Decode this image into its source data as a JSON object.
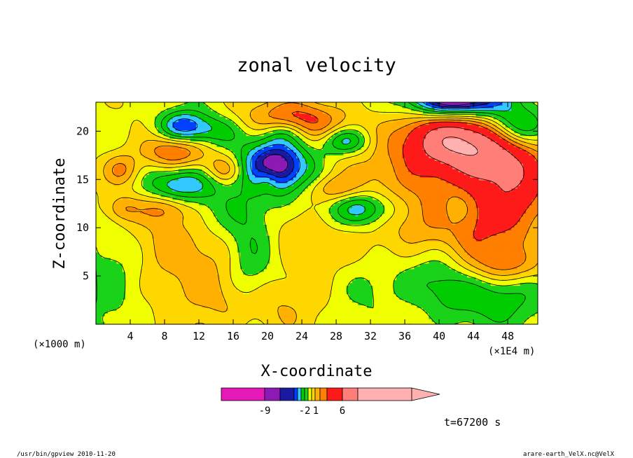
{
  "chart_data": {
    "type": "heatmap",
    "title": "zonal velocity",
    "xlabel": "X-coordinate",
    "ylabel": "Z-coordinate",
    "x_unit": "(×1E4 m)",
    "y_unit": "(×1000 m)",
    "xlim": [
      0,
      51.5
    ],
    "ylim": [
      0,
      23
    ],
    "x_ticks": [
      {
        "value": 4,
        "label": "4"
      },
      {
        "value": 8,
        "label": "8"
      },
      {
        "value": 12,
        "label": "12"
      },
      {
        "value": 16,
        "label": "16"
      },
      {
        "value": 20,
        "label": "20"
      },
      {
        "value": 24,
        "label": "24"
      },
      {
        "value": 28,
        "label": "28"
      },
      {
        "value": 32,
        "label": "32"
      },
      {
        "value": 36,
        "label": "36"
      },
      {
        "value": 40,
        "label": "40"
      },
      {
        "value": 44,
        "label": "44"
      },
      {
        "value": 48,
        "label": "48"
      }
    ],
    "y_ticks": [
      {
        "value": 5,
        "label": "5"
      },
      {
        "value": 10,
        "label": "10"
      },
      {
        "value": 15,
        "label": "15"
      },
      {
        "value": 20,
        "label": "20"
      }
    ],
    "grid": false,
    "colorbar": {
      "colors": [
        "#e519b8",
        "#8c1ab3",
        "#1a1aa0",
        "#0040ff",
        "#33c8ff",
        "#00cc00",
        "#19d219",
        "#f0ff00",
        "#ffd700",
        "#ffb000",
        "#ff7f00",
        "#ff1a1a",
        "#ff7f78",
        "#ffb0b0"
      ],
      "tick_labels": [
        "-9",
        "-2",
        "1",
        "6"
      ]
    },
    "fields": [
      {
        "x": 25,
        "y": 11,
        "sx": 30,
        "sy": 12,
        "v": 1.5
      },
      {
        "x": 8,
        "y": 7,
        "sx": 6,
        "sy": 4,
        "v": 1.2
      },
      {
        "x": 38,
        "y": 11,
        "sx": 5,
        "sy": 4,
        "v": 1.4
      },
      {
        "x": 18,
        "y": 2,
        "sx": 6,
        "sy": 2,
        "v": 1.2
      },
      {
        "x": 2,
        "y": 5,
        "sx": 3,
        "sy": 6,
        "v": -1.8
      },
      {
        "x": 18,
        "y": 7,
        "sx": 2,
        "sy": 5,
        "v": -2.2
      },
      {
        "x": 15,
        "y": 12,
        "sx": 3,
        "sy": 2,
        "v": -1.6
      },
      {
        "x": 32,
        "y": 4,
        "sx": 3,
        "sy": 2.5,
        "v": -1.8
      },
      {
        "x": 40,
        "y": 5,
        "sx": 3,
        "sy": 3,
        "v": -2.5
      },
      {
        "x": 21,
        "y": 16,
        "sx": 2,
        "sy": 3,
        "v": -2.0
      },
      {
        "x": 45,
        "y": 11,
        "sx": 4,
        "sy": 5,
        "v": 2.3
      },
      {
        "x": 49,
        "y": 15,
        "sx": 3,
        "sy": 4,
        "v": 3.2
      },
      {
        "x": 42,
        "y": 19,
        "sx": 5,
        "sy": 2.5,
        "v": 6.5
      },
      {
        "x": 23,
        "y": 21,
        "sx": 4,
        "sy": 1.5,
        "v": 4.0
      },
      {
        "x": 9,
        "y": 18,
        "sx": 2.5,
        "sy": 1.2,
        "v": 3.2
      },
      {
        "x": 3,
        "y": 16,
        "sx": 1.5,
        "sy": 1.2,
        "v": 2.6
      },
      {
        "x": 15,
        "y": 16,
        "sx": 1.5,
        "sy": 1,
        "v": 2.3
      },
      {
        "x": 28,
        "y": 14,
        "sx": 2,
        "sy": 1,
        "v": 2.2
      },
      {
        "x": 3,
        "y": 12,
        "sx": 1.5,
        "sy": 1,
        "v": 2.0
      },
      {
        "x": 8,
        "y": 12,
        "sx": 2,
        "sy": 1,
        "v": 2.0
      },
      {
        "x": 20,
        "y": 15,
        "sx": 1,
        "sy": 1,
        "v": 2.0
      },
      {
        "x": 21,
        "y": 16.5,
        "sx": 3.2,
        "sy": 1.8,
        "v": -5.3
      },
      {
        "x": 10,
        "y": 14.5,
        "sx": 3,
        "sy": 1.3,
        "v": -4.0
      },
      {
        "x": 31,
        "y": 12,
        "sx": 3,
        "sy": 1.3,
        "v": -4.0
      },
      {
        "x": 10,
        "y": 20.5,
        "sx": 2,
        "sy": 1.2,
        "v": -4.5
      },
      {
        "x": 29,
        "y": 19,
        "sx": 2,
        "sy": 1,
        "v": -4.0
      },
      {
        "x": 49,
        "y": 20.5,
        "sx": 2.5,
        "sy": 1.5,
        "v": -5.0
      },
      {
        "x": 14,
        "y": 20,
        "sx": 2.5,
        "sy": 1.2,
        "v": -2.5
      },
      {
        "x": 22,
        "y": 20,
        "sx": 2,
        "sy": 1,
        "v": -2.8
      },
      {
        "x": 42,
        "y": 23.5,
        "sx": 4,
        "sy": 1.5,
        "v": -9.5
      },
      {
        "x": 48,
        "y": 6,
        "sx": 3,
        "sy": 1.2,
        "v": 2.0
      },
      {
        "x": 47,
        "y": 3,
        "sx": 4,
        "sy": 2.2,
        "v": -3.0
      },
      {
        "x": 42,
        "y": 12,
        "sx": 1.5,
        "sy": 1.5,
        "v": -1.5
      }
    ]
  },
  "annotations": {
    "time": "t=67200 s",
    "footer_left": "/usr/bin/gpview   2010-11-20",
    "footer_right": "arare-earth_VelX.nc@VelX"
  }
}
